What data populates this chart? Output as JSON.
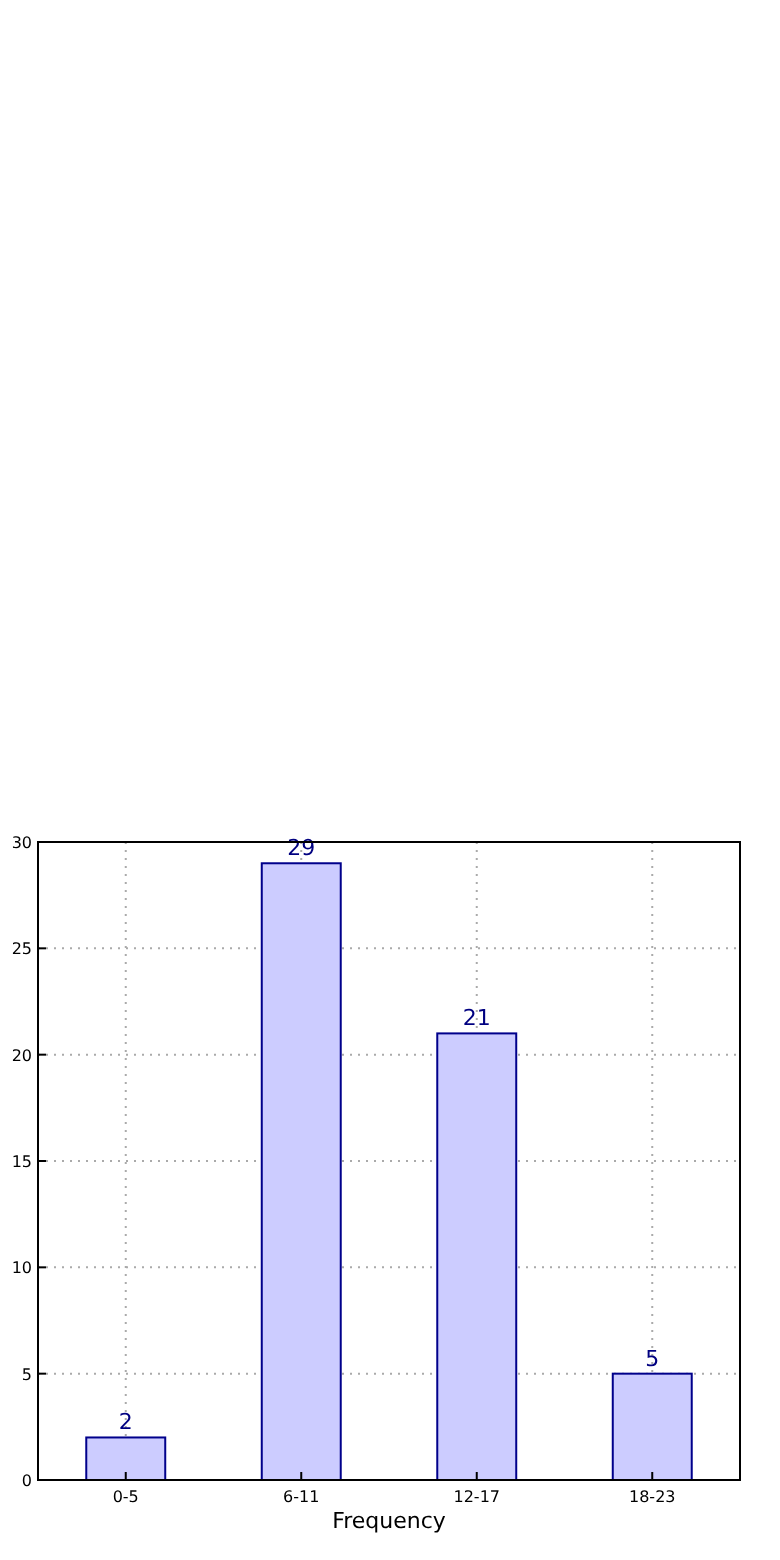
{
  "chart_data": {
    "type": "bar",
    "xlabel": "Frequency",
    "categories": [
      "0-5",
      "6-11",
      "12-17",
      "18-23"
    ],
    "values": [
      2,
      29,
      21,
      5
    ],
    "color": "#ccccff",
    "ylim": [
      0,
      30
    ],
    "yticks": [
      0,
      5,
      10,
      15,
      20,
      25,
      30
    ],
    "grid": true,
    "data_labels": true
  }
}
